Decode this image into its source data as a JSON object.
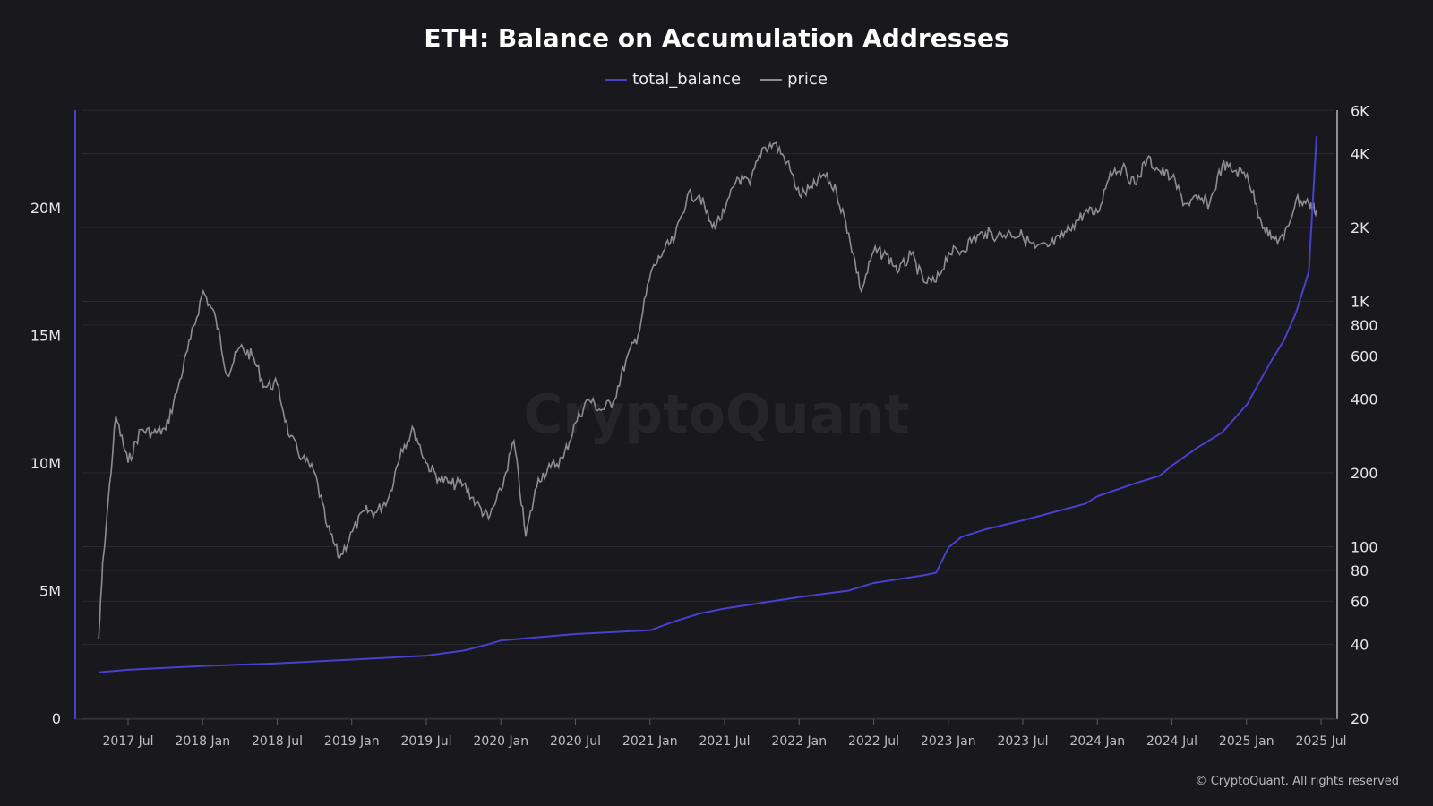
{
  "chart_data": {
    "type": "line",
    "title": "ETH: Balance on Accumulation Addresses",
    "legend": {
      "placement": "top-center",
      "entries": [
        "total_balance",
        "price"
      ]
    },
    "colors": {
      "total_balance": "#4b3fcf",
      "price": "#8d8c94",
      "background": "#19181d",
      "grid": "#2a2930"
    },
    "grid": true,
    "x_ticks": [
      "2017 Jul",
      "2018 Jan",
      "2018 Jul",
      "2019 Jan",
      "2019 Jul",
      "2020 Jan",
      "2020 Jul",
      "2021 Jan",
      "2021 Jul",
      "2022 Jan",
      "2022 Jul",
      "2023 Jan",
      "2023 Jul",
      "2024 Jan",
      "2024 Jul",
      "2025 Jan",
      "2025 Jul"
    ],
    "y_left": {
      "scale": "linear",
      "range": [
        0,
        24000000
      ],
      "ticks": [
        "0",
        "5M",
        "10M",
        "15M",
        "20M"
      ],
      "tick_values": [
        0,
        5000000,
        10000000,
        15000000,
        20000000
      ]
    },
    "y_right": {
      "scale": "log",
      "range": [
        20,
        6000
      ],
      "ticks": [
        "20",
        "40",
        "60",
        "80",
        "100",
        "200",
        "400",
        "600",
        "800",
        "1K",
        "2K",
        "4K",
        "6K"
      ],
      "tick_values": [
        20,
        40,
        60,
        80,
        100,
        200,
        400,
        600,
        800,
        1000,
        2000,
        4000,
        6000
      ]
    },
    "series": [
      {
        "name": "total_balance",
        "axis": "left",
        "x": [
          "2017-04-20",
          "2017-07",
          "2018-01",
          "2018-07",
          "2019-01",
          "2019-07",
          "2019-10",
          "2019-12",
          "2020-01",
          "2020-07",
          "2021-01",
          "2021-03",
          "2021-05",
          "2021-07",
          "2022-01",
          "2022-05",
          "2022-07",
          "2022-11",
          "2022-12",
          "2023-01",
          "2023-02",
          "2023-04",
          "2023-07",
          "2023-12",
          "2024-01",
          "2024-04",
          "2024-06",
          "2024-07",
          "2024-09",
          "2024-11",
          "2025-01",
          "2025-02",
          "2025-03",
          "2025-04",
          "2025-05",
          "2025-06-01",
          "2025-06-10",
          "2025-06-20"
        ],
        "values": [
          1800000,
          1900000,
          2050000,
          2150000,
          2300000,
          2450000,
          2650000,
          2900000,
          3050000,
          3300000,
          3450000,
          3800000,
          4100000,
          4300000,
          4750000,
          5000000,
          5300000,
          5600000,
          5700000,
          6700000,
          7100000,
          7400000,
          7750000,
          8400000,
          8700000,
          9200000,
          9500000,
          9900000,
          10600000,
          11200000,
          12300000,
          13200000,
          14000000,
          14800000,
          15900000,
          17500000,
          20000000,
          22800000
        ]
      },
      {
        "name": "price",
        "axis": "right",
        "x": [
          "2017-04-20",
          "2017-05",
          "2017-06",
          "2017-07",
          "2017-08",
          "2017-09",
          "2017-10",
          "2017-11",
          "2017-12",
          "2018-01",
          "2018-02",
          "2018-03",
          "2018-04",
          "2018-05",
          "2018-06",
          "2018-07",
          "2018-08",
          "2018-09",
          "2018-10",
          "2018-11",
          "2018-12",
          "2019-01",
          "2019-02",
          "2019-03",
          "2019-04",
          "2019-05",
          "2019-06",
          "2019-07",
          "2019-08",
          "2019-09",
          "2019-10",
          "2019-11",
          "2019-12",
          "2020-01",
          "2020-02",
          "2020-03",
          "2020-04",
          "2020-05",
          "2020-06",
          "2020-07",
          "2020-08",
          "2020-09",
          "2020-10",
          "2020-11",
          "2020-12",
          "2021-01",
          "2021-02",
          "2021-03",
          "2021-04",
          "2021-05",
          "2021-06",
          "2021-07",
          "2021-08",
          "2021-09",
          "2021-10",
          "2021-11",
          "2021-12",
          "2022-01",
          "2022-02",
          "2022-03",
          "2022-04",
          "2022-05",
          "2022-06",
          "2022-07",
          "2022-08",
          "2022-09",
          "2022-10",
          "2022-11",
          "2022-12",
          "2023-01",
          "2023-02",
          "2023-03",
          "2023-04",
          "2023-05",
          "2023-06",
          "2023-07",
          "2023-08",
          "2023-09",
          "2023-10",
          "2023-11",
          "2023-12",
          "2024-01",
          "2024-02",
          "2024-03",
          "2024-04",
          "2024-05",
          "2024-06",
          "2024-07",
          "2024-08",
          "2024-09",
          "2024-10",
          "2024-11",
          "2024-12",
          "2025-01",
          "2025-02",
          "2025-03",
          "2025-04",
          "2025-05",
          "2025-06",
          "2025-06-20"
        ],
        "values": [
          42,
          90,
          340,
          220,
          300,
          290,
          300,
          450,
          700,
          1100,
          850,
          500,
          650,
          600,
          450,
          460,
          280,
          230,
          200,
          120,
          90,
          115,
          140,
          138,
          160,
          250,
          300,
          220,
          190,
          180,
          180,
          150,
          130,
          170,
          270,
          110,
          190,
          210,
          230,
          320,
          400,
          360,
          390,
          570,
          730,
          1300,
          1600,
          1800,
          2700,
          2700,
          2000,
          2300,
          3200,
          3000,
          4200,
          4400,
          3700,
          2700,
          2900,
          3300,
          2800,
          1900,
          1100,
          1600,
          1550,
          1330,
          1550,
          1200,
          1200,
          1580,
          1600,
          1800,
          1900,
          1850,
          1900,
          1850,
          1650,
          1670,
          1800,
          2050,
          2300,
          2300,
          3400,
          3500,
          3000,
          3800,
          3400,
          3200,
          2500,
          2600,
          2500,
          3600,
          3400,
          3300,
          2200,
          1800,
          1800,
          2600,
          2500,
          2350
        ]
      }
    ],
    "watermark": "CryptoQuant",
    "copyright": "© CryptoQuant. All rights reserved"
  }
}
